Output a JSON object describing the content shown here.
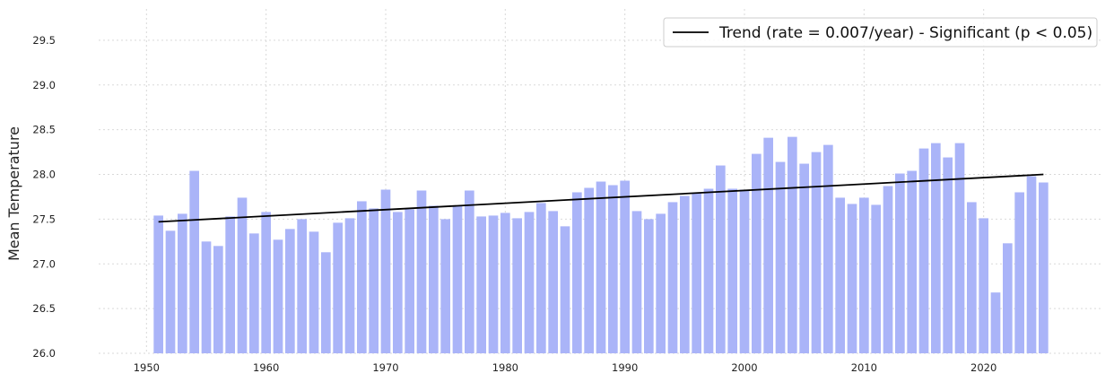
{
  "chart_data": {
    "type": "bar",
    "title": "",
    "xlabel": "",
    "ylabel": "Mean Temperature",
    "xlim": [
      1946,
      2030
    ],
    "ylim": [
      26.0,
      29.85
    ],
    "xticks": [
      "1950",
      "1960",
      "1970",
      "1980",
      "1990",
      "2000",
      "2010",
      "2020"
    ],
    "yticks": [
      "26.0",
      "26.5",
      "27.0",
      "27.5",
      "28.0",
      "28.5",
      "29.0",
      "29.5"
    ],
    "grid": true,
    "legend": "top-right",
    "bar_color": "#aab4f8",
    "trend_color": "#000000",
    "x": [
      1951,
      1952,
      1953,
      1954,
      1955,
      1956,
      1957,
      1958,
      1959,
      1960,
      1961,
      1962,
      1963,
      1964,
      1965,
      1966,
      1967,
      1968,
      1969,
      1970,
      1971,
      1972,
      1973,
      1974,
      1975,
      1976,
      1977,
      1978,
      1979,
      1980,
      1981,
      1982,
      1983,
      1984,
      1985,
      1986,
      1987,
      1988,
      1989,
      1990,
      1991,
      1992,
      1993,
      1994,
      1995,
      1996,
      1997,
      1998,
      1999,
      2000,
      2001,
      2002,
      2003,
      2004,
      2005,
      2006,
      2007,
      2008,
      2009,
      2010,
      2011,
      2012,
      2013,
      2014,
      2015,
      2016,
      2017,
      2018,
      2019,
      2020,
      2021,
      2022,
      2023,
      2024,
      2025
    ],
    "values": [
      27.54,
      27.37,
      27.56,
      28.04,
      27.25,
      27.2,
      27.53,
      27.74,
      27.34,
      27.58,
      27.27,
      27.39,
      27.5,
      27.36,
      27.13,
      27.46,
      27.51,
      27.7,
      27.62,
      27.83,
      27.58,
      27.61,
      27.82,
      27.65,
      27.5,
      27.65,
      27.82,
      27.53,
      27.54,
      27.57,
      27.51,
      27.58,
      27.68,
      27.59,
      27.42,
      27.8,
      27.85,
      27.92,
      27.88,
      27.93,
      27.59,
      27.5,
      27.56,
      27.69,
      27.76,
      27.79,
      27.84,
      28.1,
      27.84,
      27.83,
      28.23,
      28.41,
      28.14,
      28.42,
      28.12,
      28.25,
      28.33,
      27.74,
      27.67,
      27.74,
      27.66,
      27.87,
      28.01,
      28.04,
      28.29,
      28.35,
      28.19,
      28.35,
      27.69,
      27.51,
      26.68,
      27.23,
      27.8,
      27.98,
      27.91
    ],
    "trend": {
      "name": "Trend (rate = 0.007/year) - Significant (p < 0.05)",
      "start": [
        1951,
        27.47
      ],
      "end": [
        2025,
        28.0
      ]
    }
  }
}
